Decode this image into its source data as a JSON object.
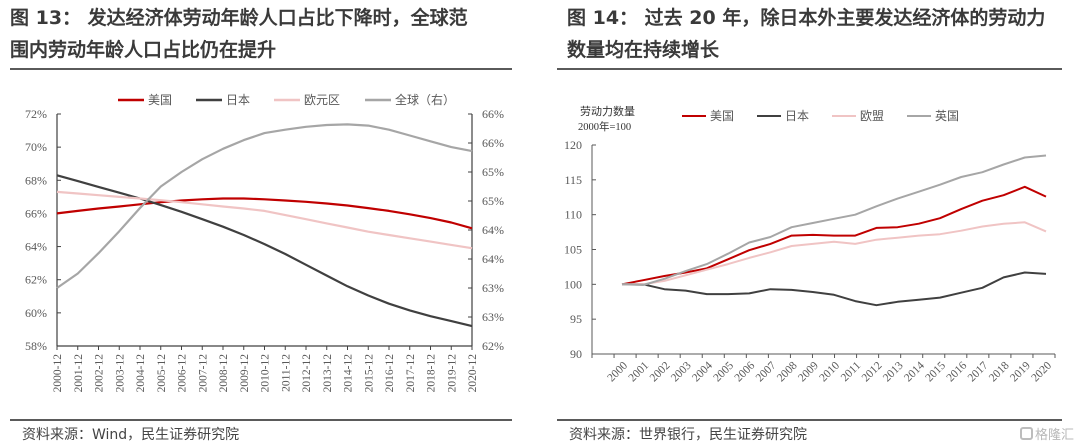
{
  "figures": [
    {
      "title": "图 13：  发达经济体劳动年龄人口占比下降时，全球范围内劳动年龄人口占比仍在提升",
      "title_line1": "图 13：  发达经济体劳动年龄人口占比下降时，全球范",
      "title_line2": "围内劳动年龄人口占比仍在提升",
      "source": "资料来源：Wind，民生证券研究院"
    },
    {
      "title": "图 14：  过去 20 年，除日本外主要发达经济体的劳动力数量均在持续增长",
      "title_line1": "图 14：  过去 20 年，除日本外主要发达经济体的劳动力",
      "title_line2": "数量均在持续增长",
      "source": "资料来源：世界银行，民生证券研究院"
    }
  ],
  "watermark": "格隆汇",
  "colors": {
    "us": "#c00000",
    "japan": "#404040",
    "euro": "#f0c4c4",
    "global": "#a6a6a6",
    "axis": "#404040",
    "tick_text": "#595959"
  },
  "chart_data": [
    {
      "type": "line",
      "title": "",
      "xlabel": "",
      "ylabel": "",
      "x": [
        "2000-12",
        "2001-12",
        "2002-12",
        "2003-12",
        "2004-12",
        "2005-12",
        "2006-12",
        "2007-12",
        "2008-12",
        "2009-12",
        "2010-12",
        "2011-12",
        "2012-12",
        "2013-12",
        "2014-12",
        "2015-12",
        "2016-12",
        "2017-12",
        "2018-12",
        "2019-12",
        "2020-12"
      ],
      "ylim": [
        58,
        72
      ],
      "y_ticks": [
        58,
        60,
        62,
        64,
        66,
        68,
        70,
        72
      ],
      "y_tick_labels": [
        "58%",
        "60%",
        "62%",
        "64%",
        "66%",
        "68%",
        "70%",
        "72%"
      ],
      "y2lim": [
        62,
        66
      ],
      "y2_ticks": [
        62,
        62.5,
        63,
        63.5,
        64,
        64.5,
        65,
        65.5,
        66
      ],
      "y2_tick_labels": [
        "62%",
        "63%",
        "63%",
        "64%",
        "64%",
        "65%",
        "65%",
        "66%",
        "66%"
      ],
      "legend_position": "top",
      "grid": false,
      "series": [
        {
          "name": "美国",
          "key": "us",
          "axis": "left",
          "values": [
            66.0,
            66.15,
            66.3,
            66.42,
            66.55,
            66.68,
            66.78,
            66.85,
            66.9,
            66.9,
            66.85,
            66.78,
            66.7,
            66.6,
            66.48,
            66.32,
            66.15,
            65.95,
            65.72,
            65.45,
            65.1
          ]
        },
        {
          "name": "日本",
          "key": "japan",
          "axis": "left",
          "values": [
            68.3,
            67.95,
            67.6,
            67.25,
            66.9,
            66.5,
            66.1,
            65.65,
            65.2,
            64.7,
            64.15,
            63.55,
            62.9,
            62.25,
            61.6,
            61.05,
            60.55,
            60.15,
            59.8,
            59.5,
            59.2
          ]
        },
        {
          "name": "欧元区",
          "key": "euro",
          "axis": "left",
          "values": [
            67.3,
            67.2,
            67.1,
            67.0,
            66.9,
            66.8,
            66.68,
            66.55,
            66.42,
            66.3,
            66.15,
            65.9,
            65.65,
            65.4,
            65.15,
            64.9,
            64.7,
            64.5,
            64.3,
            64.1,
            63.9
          ]
        },
        {
          "name": "全球（右）",
          "key": "global",
          "axis": "right",
          "values": [
            63.0,
            63.25,
            63.6,
            63.98,
            64.38,
            64.75,
            65.0,
            65.22,
            65.4,
            65.55,
            65.67,
            65.73,
            65.78,
            65.81,
            65.82,
            65.8,
            65.73,
            65.63,
            65.53,
            65.43,
            65.36
          ]
        }
      ]
    },
    {
      "type": "line",
      "title": "",
      "ylabel": "劳动力数量",
      "ylabel_line2": "2000年=100",
      "xlabel": "",
      "x": [
        "2000",
        "2001",
        "2002",
        "2003",
        "2004",
        "2005",
        "2006",
        "2007",
        "2008",
        "2009",
        "2010",
        "2011",
        "2012",
        "2013",
        "2014",
        "2015",
        "2016",
        "2017",
        "2018",
        "2019",
        "2020"
      ],
      "ylim": [
        90,
        120
      ],
      "y_ticks": [
        90,
        95,
        100,
        105,
        110,
        115,
        120
      ],
      "y_tick_labels": [
        "90",
        "95",
        "100",
        "105",
        "110",
        "115",
        "120"
      ],
      "legend_position": "top",
      "grid": false,
      "series": [
        {
          "name": "美国",
          "key": "us",
          "values": [
            100,
            100.6,
            101.2,
            101.7,
            102.3,
            103.6,
            104.9,
            105.8,
            107.0,
            107.1,
            107.0,
            107.0,
            108.1,
            108.2,
            108.7,
            109.5,
            110.8,
            112.0,
            112.8,
            114.0,
            112.6
          ]
        },
        {
          "name": "日本",
          "key": "japan",
          "values": [
            100,
            100.0,
            99.3,
            99.1,
            98.6,
            98.6,
            98.7,
            99.3,
            99.2,
            98.9,
            98.5,
            97.6,
            97.0,
            97.5,
            97.8,
            98.1,
            98.8,
            99.5,
            101.0,
            101.7,
            101.5
          ]
        },
        {
          "name": "欧盟",
          "key": "euro",
          "values": [
            100,
            100.0,
            100.5,
            101.3,
            102.1,
            102.9,
            103.8,
            104.6,
            105.5,
            105.8,
            106.1,
            105.8,
            106.4,
            106.7,
            107.0,
            107.2,
            107.7,
            108.3,
            108.7,
            108.9,
            107.6
          ]
        },
        {
          "name": "英国",
          "key": "global",
          "values": [
            100,
            99.9,
            100.8,
            101.9,
            102.9,
            104.4,
            106.0,
            106.8,
            108.2,
            108.8,
            109.4,
            110.0,
            111.2,
            112.3,
            113.3,
            114.3,
            115.4,
            116.1,
            117.2,
            118.2,
            118.5
          ]
        }
      ]
    }
  ]
}
